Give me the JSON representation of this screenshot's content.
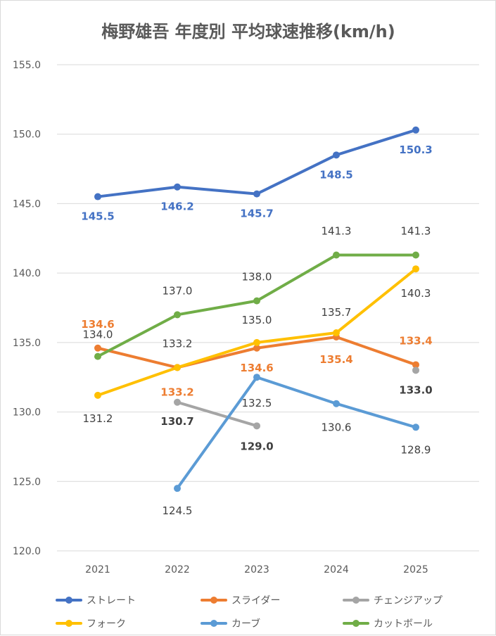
{
  "chart_data": {
    "type": "line",
    "title": "梅野雄吾 年度別 平均球速推移(km/h)",
    "categories": [
      "2021",
      "2022",
      "2023",
      "2024",
      "2025"
    ],
    "ylim": [
      120.0,
      155.0
    ],
    "yticks": [
      "120.0",
      "125.0",
      "130.0",
      "135.0",
      "140.0",
      "145.0",
      "150.0",
      "155.0"
    ],
    "grid": true,
    "legend_position": "bottom",
    "series": [
      {
        "name": "ストレート",
        "color": "#4472C4",
        "values": [
          145.5,
          146.2,
          145.7,
          148.5,
          150.3
        ],
        "labels": [
          "145.5",
          "146.2",
          "145.7",
          "148.5",
          "150.3"
        ],
        "label_color": "#4472C4",
        "label_bold": [
          true,
          true,
          true,
          true,
          true
        ]
      },
      {
        "name": "スライダー",
        "color": "#ED7D31",
        "values": [
          134.6,
          133.2,
          134.6,
          135.4,
          133.4
        ],
        "labels": [
          "134.6",
          "133.2",
          "134.6",
          "135.4",
          "133.4"
        ],
        "label_color": "#ED7D31",
        "label_bold": [
          true,
          true,
          true,
          true,
          true
        ]
      },
      {
        "name": "チェンジアップ",
        "color": "#A5A5A5",
        "values": [
          null,
          130.7,
          129.0,
          null,
          133.0
        ],
        "labels": [
          null,
          "130.7",
          "129.0",
          null,
          "133.0"
        ],
        "label_color": "#404040",
        "label_bold": [
          false,
          true,
          true,
          false,
          true
        ]
      },
      {
        "name": "フォーク",
        "color": "#FFC000",
        "values": [
          131.2,
          133.2,
          135.0,
          135.7,
          140.3
        ],
        "labels": [
          "131.2",
          "133.2",
          "135.0",
          "135.7",
          "140.3"
        ],
        "label_color": "#404040",
        "label_bold": [
          false,
          false,
          false,
          false,
          false
        ]
      },
      {
        "name": "カーブ",
        "color": "#5B9BD5",
        "values": [
          null,
          124.5,
          132.5,
          130.6,
          128.9
        ],
        "labels": [
          null,
          "124.5",
          "132.5",
          "130.6",
          "128.9"
        ],
        "label_color": "#404040",
        "label_bold": [
          false,
          false,
          false,
          false,
          false
        ]
      },
      {
        "name": "カットボール",
        "color": "#70AD47",
        "values": [
          134.0,
          137.0,
          138.0,
          141.3,
          141.3
        ],
        "labels": [
          "134.0",
          "137.0",
          "138.0",
          "141.3",
          "141.3"
        ],
        "label_color": "#404040",
        "label_bold": [
          false,
          false,
          false,
          false,
          false
        ]
      }
    ]
  }
}
